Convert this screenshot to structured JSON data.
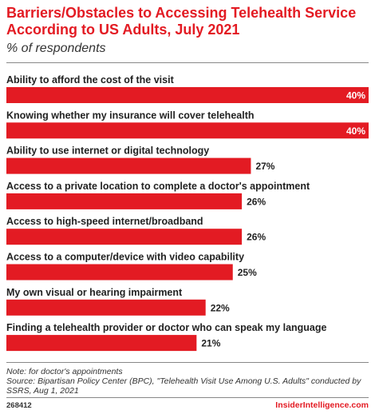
{
  "title": "Barriers/Obstacles to Accessing Telehealth Service According to US Adults, July 2021",
  "subtitle": "% of respondents",
  "note": "Note: for doctor's appointments",
  "source": "Source: Bipartisan Policy Center (BPC), \"Telehealth Visit Use Among U.S. Adults\" conducted by SSRS, Aug 1, 2021",
  "chart_id": "268412",
  "brand": "InsiderIntelligence.com",
  "colors": {
    "bar": "#e31b23",
    "title": "#e31b23"
  },
  "chart_data": {
    "type": "bar",
    "orientation": "horizontal",
    "categories": [
      "Ability to afford the cost of the visit",
      "Knowing whether my insurance will cover telehealth",
      "Ability to use internet or digital technology",
      "Access to a private location to complete a doctor's appointment",
      "Access to high-speed internet/broadband",
      "Access to a computer/device with video capability",
      "My own visual or hearing impairment",
      "Finding a telehealth provider or doctor who can speak my language"
    ],
    "values": [
      40,
      40,
      27,
      26,
      26,
      25,
      22,
      21
    ],
    "value_labels": [
      "40%",
      "40%",
      "27%",
      "26%",
      "26%",
      "25%",
      "22%",
      "21%"
    ],
    "xlim": [
      0,
      40
    ],
    "grid": false,
    "legend": "none"
  }
}
